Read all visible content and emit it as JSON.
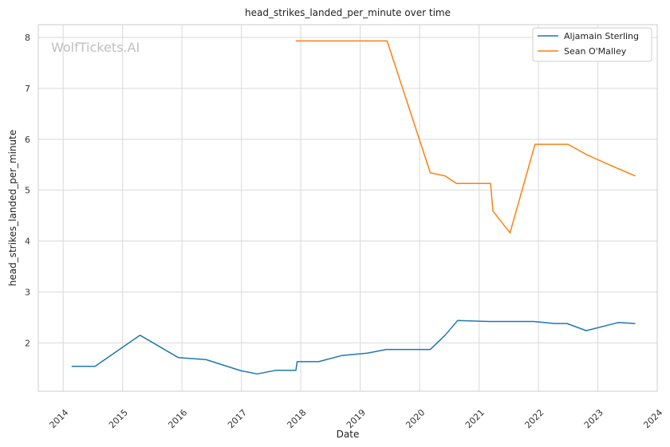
{
  "chart_data": {
    "type": "line",
    "title": "head_strikes_landed_per_minute over time",
    "xlabel": "Date",
    "ylabel": "head_strikes_landed_per_minute",
    "watermark": "WolfTickets.AI",
    "xlim": [
      "2013-08-01",
      "2024-01-01"
    ],
    "ylim": [
      1.05,
      8.25
    ],
    "x_ticks": [
      "2014",
      "2015",
      "2016",
      "2017",
      "2018",
      "2019",
      "2020",
      "2021",
      "2022",
      "2023",
      "2024"
    ],
    "y_ticks": [
      2,
      3,
      4,
      5,
      6,
      7,
      8
    ],
    "grid": true,
    "legend_position": "top-right",
    "series": [
      {
        "name": "Aljamain Sterling",
        "color": "#1f77b4",
        "points": [
          {
            "x": "2014-02-22",
            "y": 1.54
          },
          {
            "x": "2014-07-16",
            "y": 1.54
          },
          {
            "x": "2015-04-18",
            "y": 2.15
          },
          {
            "x": "2015-12-10",
            "y": 1.71
          },
          {
            "x": "2016-05-29",
            "y": 1.67
          },
          {
            "x": "2016-12-30",
            "y": 1.45
          },
          {
            "x": "2017-04-08",
            "y": 1.39
          },
          {
            "x": "2017-07-29",
            "y": 1.46
          },
          {
            "x": "2017-12-02",
            "y": 1.46
          },
          {
            "x": "2017-12-09",
            "y": 1.63
          },
          {
            "x": "2018-04-21",
            "y": 1.63
          },
          {
            "x": "2018-09-08",
            "y": 1.75
          },
          {
            "x": "2019-02-17",
            "y": 1.8
          },
          {
            "x": "2019-06-08",
            "y": 1.87
          },
          {
            "x": "2020-03-07",
            "y": 1.87
          },
          {
            "x": "2020-06-06",
            "y": 2.15
          },
          {
            "x": "2020-08-22",
            "y": 2.44
          },
          {
            "x": "2021-03-06",
            "y": 2.42
          },
          {
            "x": "2021-12-04",
            "y": 2.42
          },
          {
            "x": "2022-04-09",
            "y": 2.38
          },
          {
            "x": "2022-06-25",
            "y": 2.38
          },
          {
            "x": "2022-10-22",
            "y": 2.24
          },
          {
            "x": "2023-05-06",
            "y": 2.4
          },
          {
            "x": "2023-08-19",
            "y": 2.38
          }
        ]
      },
      {
        "name": "Sean O'Malley",
        "color": "#ff7f0e",
        "points": [
          {
            "x": "2017-12-01",
            "y": 7.93
          },
          {
            "x": "2019-06-15",
            "y": 7.93
          },
          {
            "x": "2020-03-07",
            "y": 5.34
          },
          {
            "x": "2020-06-06",
            "y": 5.28
          },
          {
            "x": "2020-08-15",
            "y": 5.13
          },
          {
            "x": "2021-03-12",
            "y": 5.13
          },
          {
            "x": "2021-03-27",
            "y": 4.59
          },
          {
            "x": "2021-07-10",
            "y": 4.16
          },
          {
            "x": "2021-12-11",
            "y": 5.9
          },
          {
            "x": "2022-07-02",
            "y": 5.9
          },
          {
            "x": "2022-10-22",
            "y": 5.7
          },
          {
            "x": "2023-04-01",
            "y": 5.47
          },
          {
            "x": "2023-08-19",
            "y": 5.28
          }
        ]
      }
    ]
  }
}
